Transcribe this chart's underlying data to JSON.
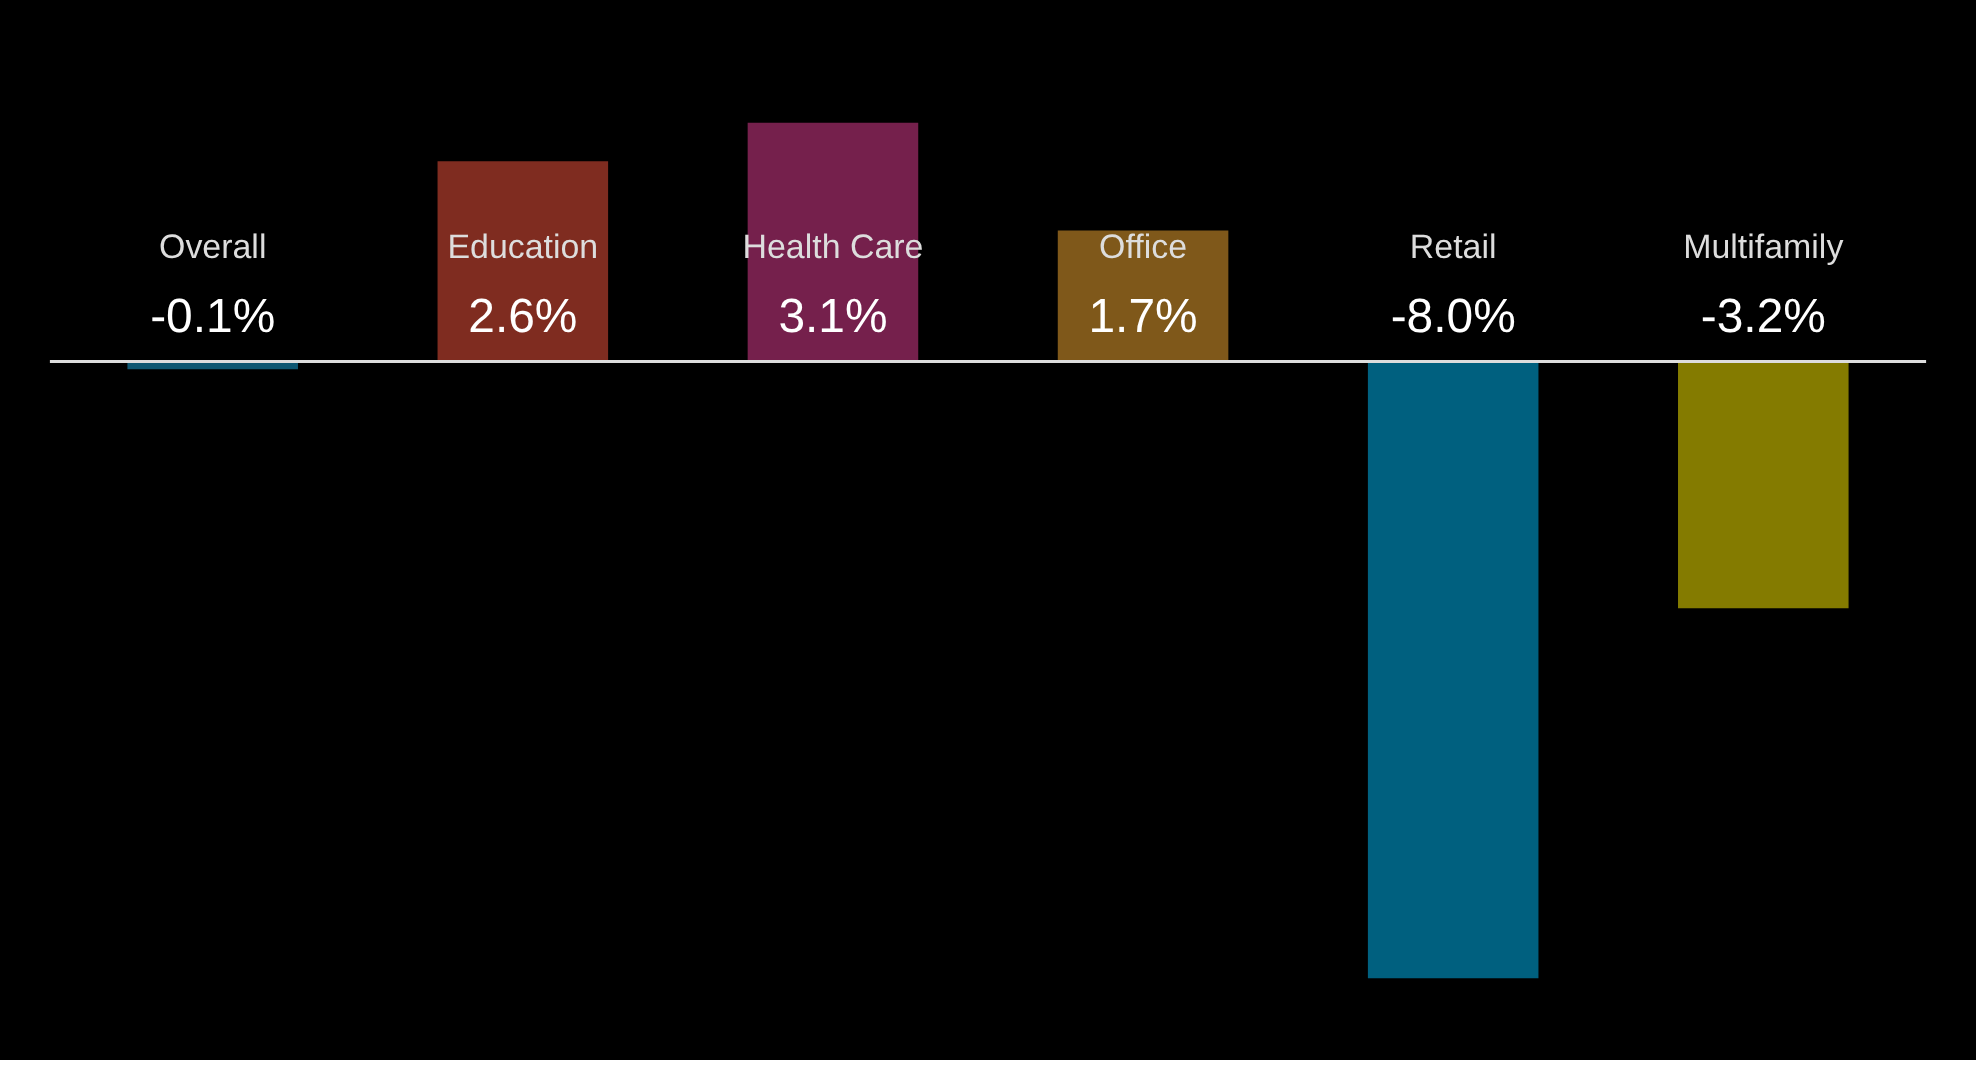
{
  "chart_data": {
    "type": "bar",
    "categories": [
      "Overall",
      "Education",
      "Health Care",
      "Office",
      "Retail",
      "Multifamily"
    ],
    "values": [
      -0.1,
      2.6,
      3.1,
      1.7,
      -8.0,
      -3.2
    ],
    "colors": [
      "#1a9fd0",
      "#e8503a",
      "#d63a8a",
      "#e8a030",
      "#00aee8",
      "#f0e000"
    ],
    "value_labels": [
      "-0.1%",
      "2.6%",
      "3.1%",
      "1.7%",
      "-8.0%",
      "-3.2%"
    ]
  }
}
